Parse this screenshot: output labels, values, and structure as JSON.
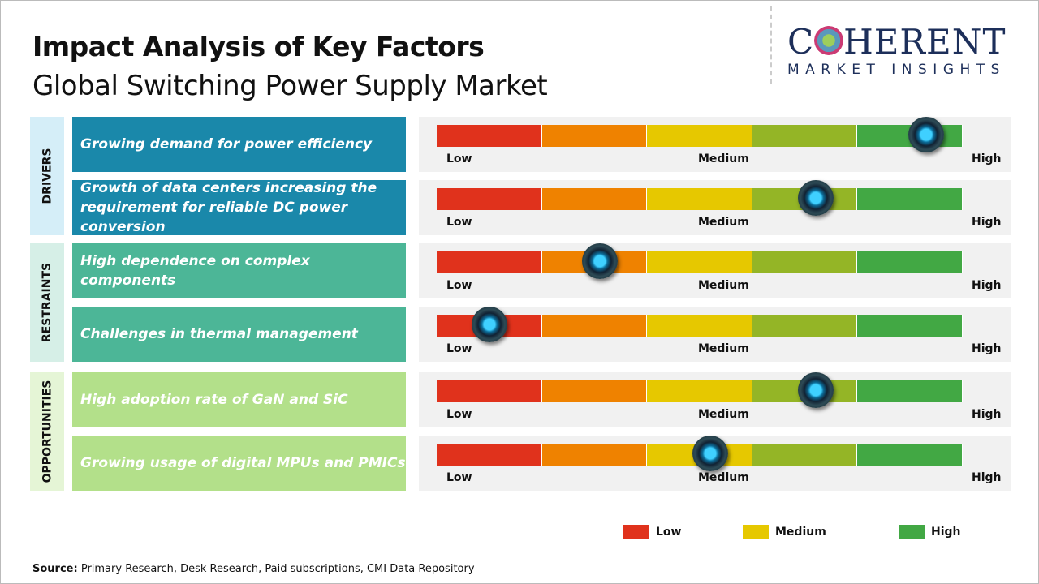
{
  "title": "Impact Analysis of Key Factors",
  "subtitle": "Global Switching Power Supply Market",
  "logo": {
    "text": "COHERENT",
    "tagline": "MARKET INSIGHTS"
  },
  "scale_labels": {
    "low": "Low",
    "medium": "Medium",
    "high": "High"
  },
  "segment_colors": [
    "#e0321c",
    "#ef8200",
    "#e6c800",
    "#94b526",
    "#42a844"
  ],
  "categories": [
    {
      "label": "DRIVERS",
      "bg": "#d5eef8",
      "factor_color": "#1a88aa",
      "factors": [
        {
          "text": "Growing demand for power efficiency",
          "impact": 0.93
        },
        {
          "text": "Growth of data centers increasing the requirement for reliable DC power conversion",
          "impact": 0.72
        }
      ]
    },
    {
      "label": "RESTRAINTS",
      "bg": "#d6efe7",
      "factor_color": "#4cb697",
      "factors": [
        {
          "text": "High dependence on complex components",
          "impact": 0.31
        },
        {
          "text": "Challenges in thermal management",
          "impact": 0.1
        }
      ]
    },
    {
      "label": "OPPORTUNITIES",
      "bg": "#e5f5d6",
      "factor_color": "#b3e08a",
      "factors": [
        {
          "text": "High adoption rate of GaN and SiC",
          "impact": 0.72
        },
        {
          "text": "Growing usage of digital MPUs and PMICs",
          "impact": 0.52
        }
      ]
    }
  ],
  "legend": [
    {
      "label": "Low",
      "color": "#e0321c"
    },
    {
      "label": "Medium",
      "color": "#e6c800"
    },
    {
      "label": "High",
      "color": "#42a844"
    }
  ],
  "source": {
    "label": "Source:",
    "text": "Primary Research, Desk Research, Paid subscriptions, CMI Data Repository"
  }
}
